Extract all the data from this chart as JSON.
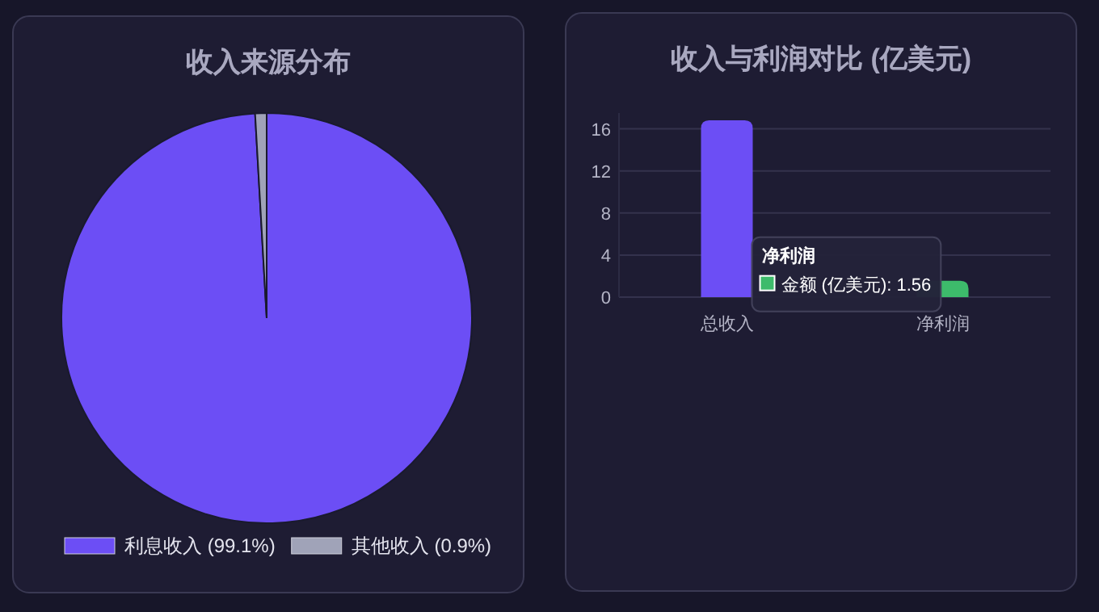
{
  "chart_data": [
    {
      "type": "pie",
      "title": "收入来源分布",
      "categories": [
        "利息收入 (99.1%)",
        "其他收入 (0.9%)"
      ],
      "values": [
        99.1,
        0.9
      ],
      "colors": [
        "#6c4ef5",
        "#a0a3b8"
      ],
      "legend": "bottom"
    },
    {
      "type": "bar",
      "title": "收入与利润对比 (亿美元)",
      "categories": [
        "总收入",
        "净利润"
      ],
      "colors": [
        "#6c4ef5",
        "#3dbb6b"
      ],
      "values": [
        16.8,
        1.56
      ],
      "ylim": [
        0,
        17.5
      ],
      "yticks": [
        0,
        4,
        8,
        12,
        16
      ],
      "grid": "y",
      "annotations": [
        "净利润",
        "金额 (亿美元): 1.56"
      ]
    }
  ]
}
